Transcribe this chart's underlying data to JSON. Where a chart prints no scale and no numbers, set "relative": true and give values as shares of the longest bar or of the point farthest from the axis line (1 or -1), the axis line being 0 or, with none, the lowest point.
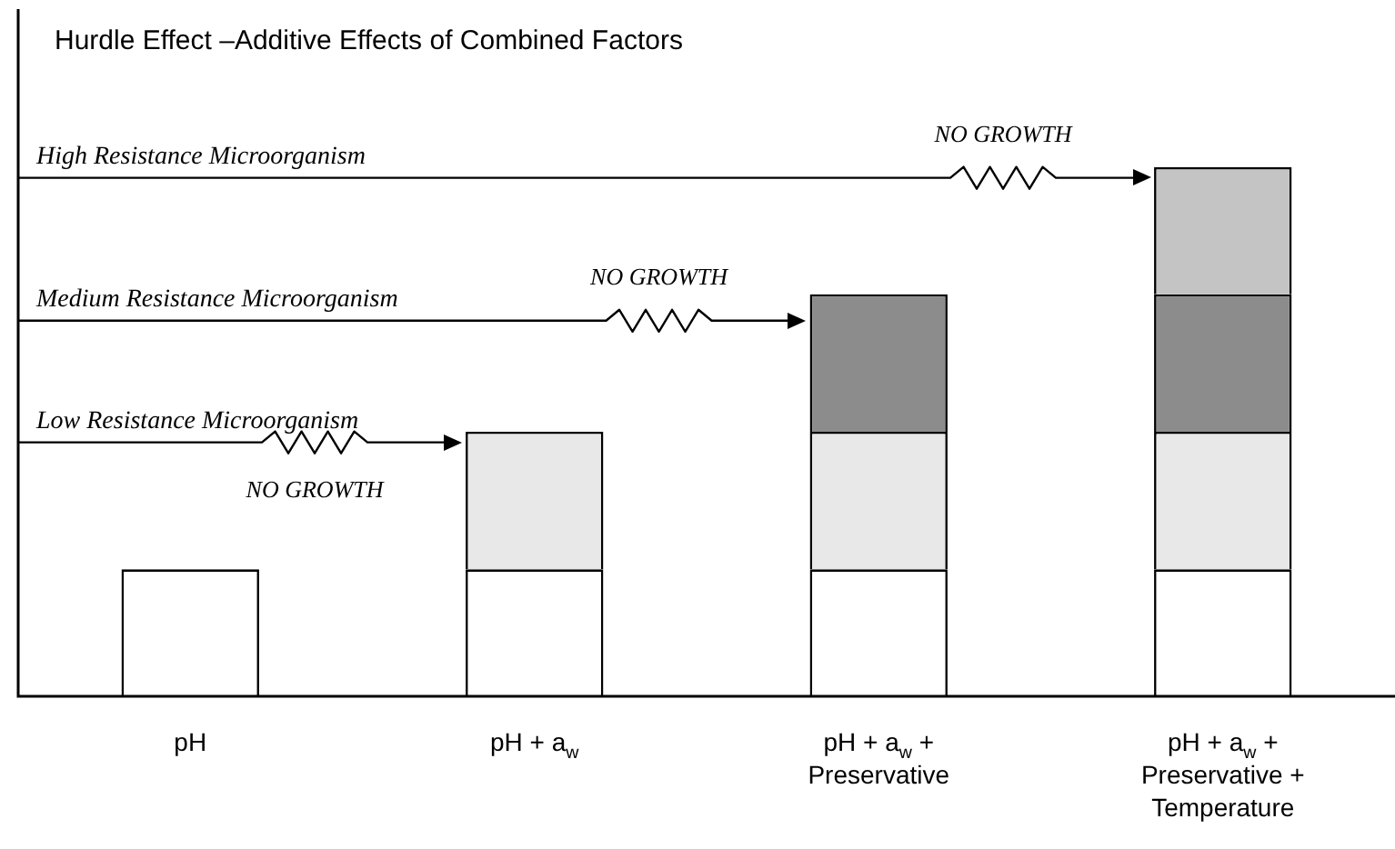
{
  "chart_data": {
    "type": "bar",
    "title": "Hurdle Effect –Additive Effects of Combined Factors",
    "categories": [
      "pH",
      "pH + a$_{w}$",
      "pH + a$_{w}$ + Preservative",
      "pH + a$_{w}$ + Preservative + Temperature"
    ],
    "stacked": true,
    "relative": true,
    "series": [
      {
        "color": "#ffffff",
        "values": [
          0.24,
          0.24,
          0.24,
          0.24
        ]
      },
      {
        "color": "#e8e8e8",
        "values": [
          null,
          0.26,
          0.26,
          0.26
        ]
      },
      {
        "color": "#8c8c8c",
        "values": [
          null,
          null,
          0.26,
          0.26
        ]
      },
      {
        "color": "#c4c4c4",
        "values": [
          null,
          null,
          null,
          0.24
        ]
      }
    ],
    "ref_lines": [
      {
        "axis": "y",
        "value": 0.48,
        "label": "Low Resistance Microorganism"
      },
      {
        "axis": "y",
        "value": 0.71,
        "label": "Medium Resistance Microorganism"
      },
      {
        "axis": "y",
        "value": 0.98,
        "label": "High Resistance Microorganism"
      }
    ],
    "annotations": [
      "NO GROWTH",
      "NO GROWTH",
      "NO GROWTH"
    ]
  }
}
